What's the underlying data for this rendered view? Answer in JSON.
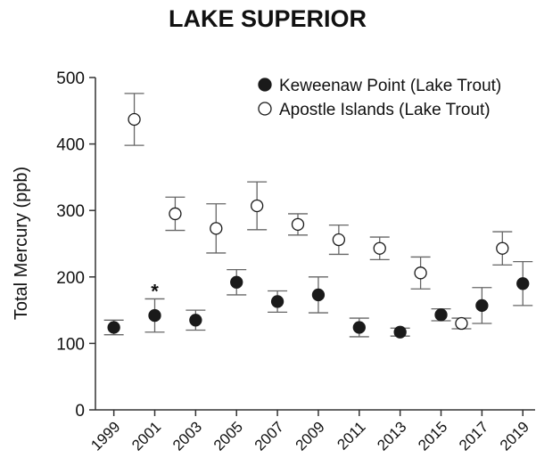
{
  "chart_data": {
    "type": "scatter",
    "title": "LAKE SUPERIOR",
    "y_label": "Total Mercury (ppb)",
    "xlim": [
      1998.1,
      2019.6
    ],
    "xticks": [
      1999,
      2001,
      2003,
      2005,
      2007,
      2009,
      2011,
      2013,
      2015,
      2017,
      2019
    ],
    "ylim": [
      0,
      500
    ],
    "yticks": [
      0,
      100,
      200,
      300,
      400,
      500
    ],
    "legend": "top-right",
    "series": [
      {
        "name": "Keweenaw Point (Lake Trout)",
        "color": "#1a1a1a",
        "marker": "filled",
        "x": [
          1999,
          2001,
          2003,
          2005,
          2007,
          2009,
          2011,
          2013,
          2015,
          2017,
          2019
        ],
        "values": [
          124,
          142,
          135,
          192,
          163,
          173,
          124,
          117,
          143,
          157,
          190
        ],
        "errors": [
          11,
          25,
          15,
          19,
          16,
          27,
          14,
          6,
          9,
          27,
          33
        ]
      },
      {
        "name": "Apostle Islands (Lake Trout)",
        "color": "#1a1a1a",
        "marker": "open",
        "x": [
          2000,
          2002,
          2004,
          2006,
          2008,
          2010,
          2012,
          2014,
          2016,
          2018
        ],
        "values": [
          437,
          295,
          273,
          307,
          279,
          256,
          243,
          206,
          130,
          243
        ],
        "errors": [
          39,
          25,
          37,
          36,
          16,
          22,
          17,
          24,
          8,
          25
        ]
      }
    ],
    "annotations": [
      {
        "text": "*",
        "x": 2001
      }
    ]
  }
}
